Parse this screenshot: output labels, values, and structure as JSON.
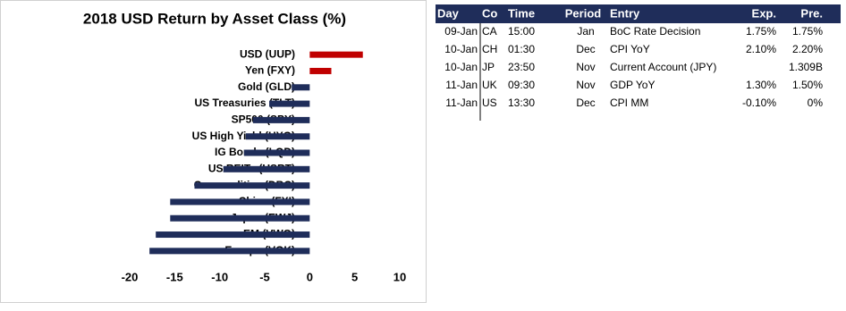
{
  "chart_data": {
    "type": "hbar",
    "title": "2018 USD Return by Asset Class (%)",
    "categories": [
      "USD (UUP)",
      "Yen (FXY)",
      "Gold (GLD)",
      "US Treasuries (TLT)",
      "SP500 (SPY)",
      "US High Yield (HYG)",
      "IG Bonds (LQD)",
      "US REITs (USRT)",
      "Commodities (DBC)",
      "China (FXI)",
      "Japan (EWJ)",
      "EM (VWO)",
      "Europe (VGK)"
    ],
    "values": [
      5.9,
      2.4,
      -2.0,
      -4.5,
      -6.3,
      -7.1,
      -7.3,
      -9.6,
      -12.8,
      -15.5,
      -15.5,
      -17.1,
      -17.8
    ],
    "colors": [
      "#c00000",
      "#c00000",
      "#1f2d5a",
      "#1f2d5a",
      "#1f2d5a",
      "#1f2d5a",
      "#1f2d5a",
      "#1f2d5a",
      "#1f2d5a",
      "#1f2d5a",
      "#1f2d5a",
      "#1f2d5a",
      "#1f2d5a"
    ],
    "xlim": [
      -20,
      10
    ],
    "xticks": [
      -20,
      -15,
      -10,
      -5,
      0,
      5,
      10
    ],
    "grid": false
  },
  "table": {
    "header": [
      "Day",
      "Co",
      "Time",
      "Period",
      "Entry",
      "Exp.",
      "Pre."
    ],
    "rows": [
      [
        "09-Jan",
        "CA",
        "15:00",
        "Jan",
        "BoC Rate Decision",
        "1.75%",
        "1.75%"
      ],
      [
        "10-Jan",
        "CH",
        "01:30",
        "Dec",
        "CPI YoY",
        "2.10%",
        "2.20%"
      ],
      [
        "10-Jan",
        "JP",
        "23:50",
        "Nov",
        "Current Account (JPY)",
        null,
        "1.309B"
      ],
      [
        "11-Jan",
        "UK",
        "09:30",
        "Nov",
        "GDP YoY",
        "1.30%",
        "1.50%"
      ],
      [
        "11-Jan",
        "US",
        "13:30",
        "Dec",
        "CPI MM",
        "-0.10%",
        "0%"
      ]
    ]
  }
}
